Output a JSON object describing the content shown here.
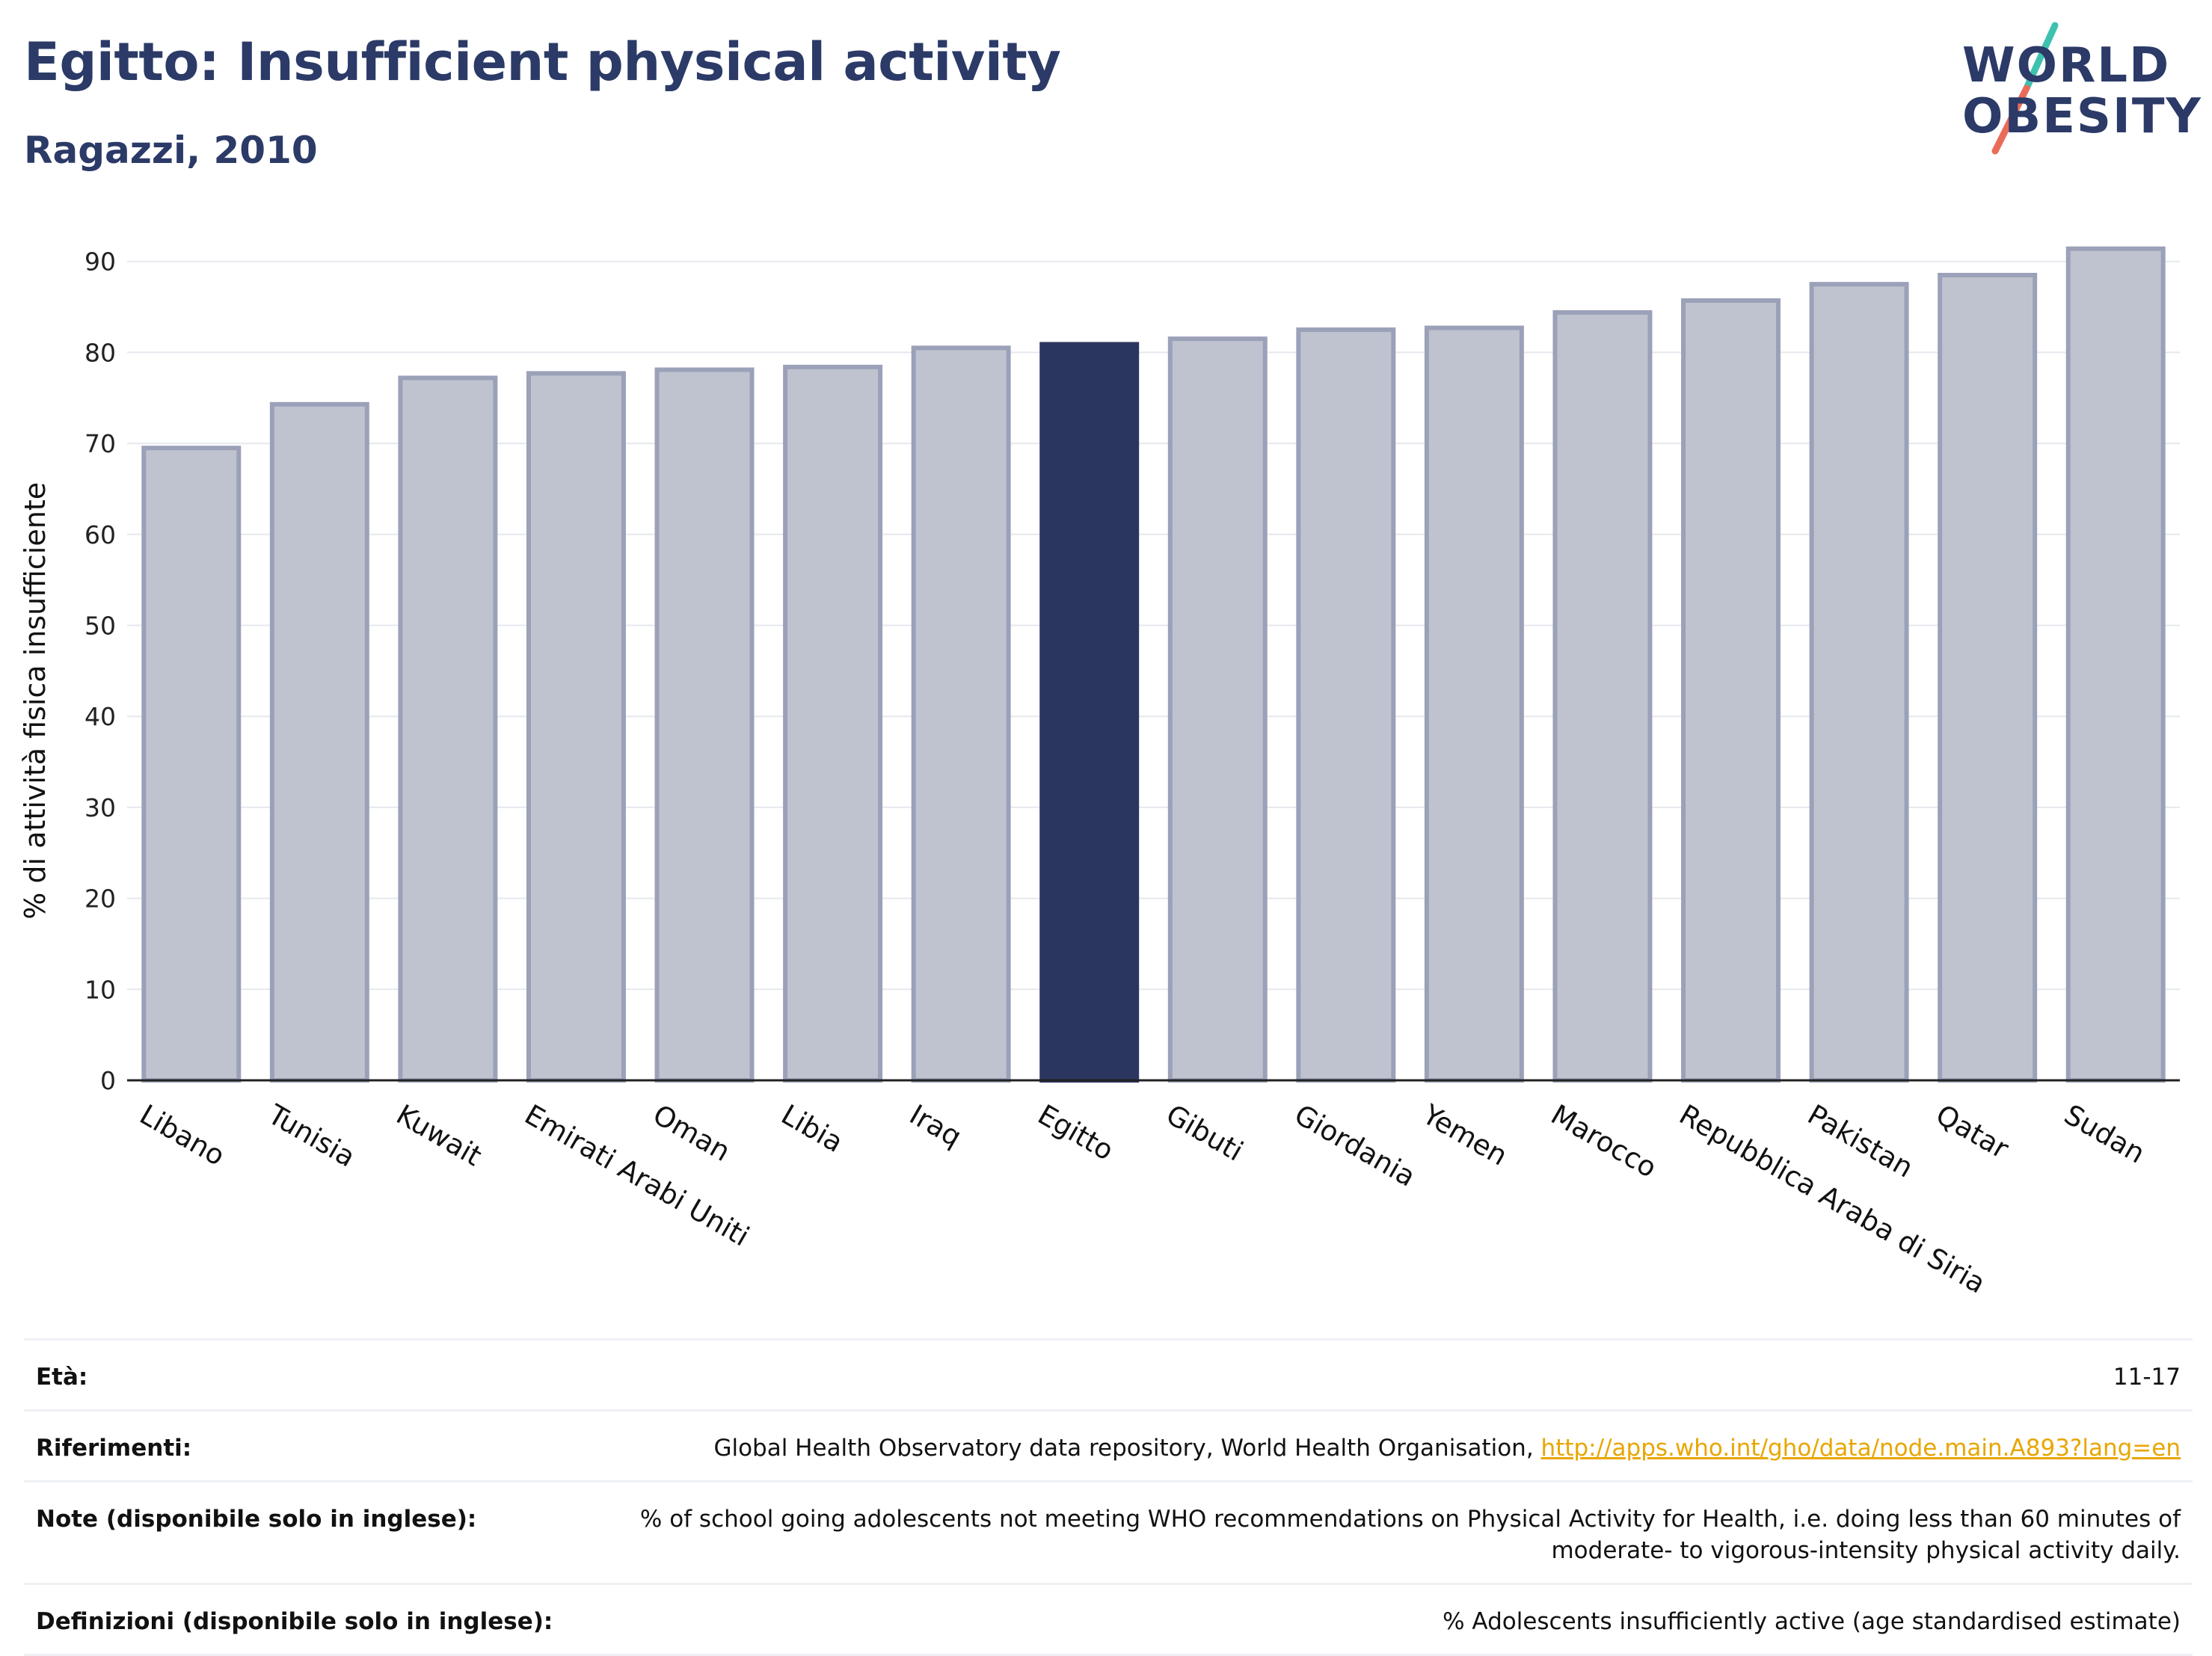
{
  "header": {
    "title": "Egitto: Insufficient physical activity",
    "subtitle": "Ragazzi, 2010"
  },
  "logo": {
    "line1": "WORLD",
    "line2": "OBESITY"
  },
  "chart_data": {
    "type": "bar",
    "ylabel": "% di attività fisica insufficiente",
    "ylim": [
      0,
      93
    ],
    "yticks": [
      0,
      10,
      20,
      30,
      40,
      50,
      60,
      70,
      80,
      90
    ],
    "grid": true,
    "categories": [
      "Libano",
      "Tunisia",
      "Kuwait",
      "Emirati Arabi Uniti",
      "Oman",
      "Libia",
      "Iraq",
      "Egitto",
      "Gibuti",
      "Giordania",
      "Yemen",
      "Marocco",
      "Repubblica Araba di Siria",
      "Pakistan",
      "Qatar",
      "Sudan"
    ],
    "values": [
      69.5,
      74.3,
      77.2,
      77.7,
      78.1,
      78.4,
      80.5,
      80.9,
      81.5,
      82.5,
      82.7,
      84.4,
      85.7,
      87.5,
      88.5,
      91.4
    ],
    "highlight": "Egitto",
    "colors": {
      "highlight": "#2b3660",
      "other": "#bfc3cf",
      "other_edge": "#9aa1b8"
    }
  },
  "info": {
    "rows": [
      {
        "label": "Età:",
        "value": "11-17"
      },
      {
        "label": "Riferimenti:",
        "value": "Global Health Observatory data repository, World Health Organisation, ",
        "link": "http://apps.who.int/gho/data/node.main.A893?lang=en"
      },
      {
        "label": "Note (disponibile solo in inglese):",
        "value": "% of school going adolescents not meeting WHO recommendations on Physical Activity for Health, i.e. doing less than 60 minutes of moderate- to vigorous-intensity physical activity daily."
      },
      {
        "label": "Definizioni (disponibile solo in inglese):",
        "value": "% Adolescents insufficiently active (age standardised estimate)"
      }
    ]
  }
}
